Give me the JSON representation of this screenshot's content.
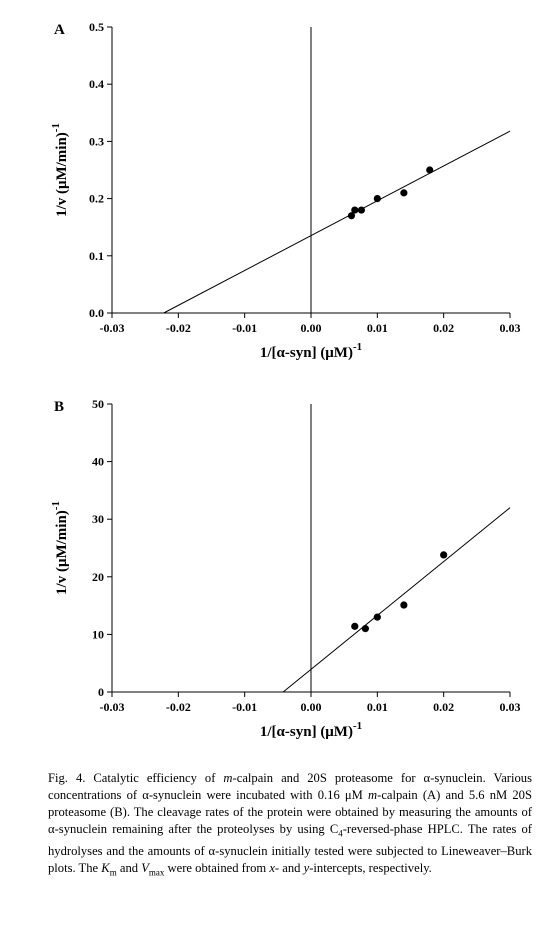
{
  "chart_data": [
    {
      "type": "scatter",
      "panel_label": "A",
      "xlabel_prefix": "1/[α-syn] (μM)",
      "xlabel_exp": "-1",
      "ylabel_prefix": "1/v (μM/min)",
      "ylabel_exp": "-1",
      "xlim": [
        -0.03,
        0.03
      ],
      "ylim": [
        0,
        0.5
      ],
      "x_ticks": [
        -0.03,
        -0.02,
        -0.01,
        0.0,
        0.01,
        0.02,
        0.03
      ],
      "x_tick_labels": [
        "-0.03",
        "-0.02",
        "-0.01",
        "0.00",
        "0.01",
        "0.02",
        "0.03"
      ],
      "y_ticks": [
        0,
        0.1,
        0.2,
        0.3,
        0.4,
        0.5
      ],
      "y_tick_labels": [
        "0.0",
        "0.1",
        "0.2",
        "0.3",
        "0.4",
        "0.5"
      ],
      "points": [
        {
          "x": 0.0061,
          "y": 0.17
        },
        {
          "x": 0.0066,
          "y": 0.18
        },
        {
          "x": 0.0076,
          "y": 0.18
        },
        {
          "x": 0.01,
          "y": 0.2
        },
        {
          "x": 0.014,
          "y": 0.21
        },
        {
          "x": 0.0179,
          "y": 0.25
        }
      ],
      "fit_line": {
        "x": [
          -0.0222,
          0.03
        ],
        "y": [
          0.0,
          0.318
        ]
      }
    },
    {
      "type": "scatter",
      "panel_label": "B",
      "xlabel_prefix": "1/[α-syn] (μM)",
      "xlabel_exp": "-1",
      "ylabel_prefix": "1/v (μM/min)",
      "ylabel_exp": "-1",
      "xlim": [
        -0.03,
        0.03
      ],
      "ylim": [
        0,
        50
      ],
      "x_ticks": [
        -0.03,
        -0.02,
        -0.01,
        0.0,
        0.01,
        0.02,
        0.03
      ],
      "x_tick_labels": [
        "-0.03",
        "-0.02",
        "-0.01",
        "0.00",
        "0.01",
        "0.02",
        "0.03"
      ],
      "y_ticks": [
        0,
        10,
        20,
        30,
        40,
        50
      ],
      "y_tick_labels": [
        "0",
        "10",
        "20",
        "30",
        "40",
        "50"
      ],
      "points": [
        {
          "x": 0.0066,
          "y": 11.4
        },
        {
          "x": 0.0082,
          "y": 11.0
        },
        {
          "x": 0.01,
          "y": 13.0
        },
        {
          "x": 0.014,
          "y": 15.1
        },
        {
          "x": 0.02,
          "y": 23.8
        }
      ],
      "fit_line": {
        "x": [
          -0.0042,
          0.03
        ],
        "y": [
          0.0,
          32.0
        ]
      }
    }
  ],
  "caption": {
    "fig": "Fig. 4.",
    "t1": " Catalytic efficiency of ",
    "m1": "m",
    "t2": "-calpain and 20S proteasome for α-synuclein. Various concentrations of α-synuclein were incubated with 0.16 μM ",
    "m2": "m",
    "t3": "-calpain (A) and 5.6 nM 20S proteasome (B). The cleavage rates of the protein were obtained by measuring the amounts of α-synuclein remaining after the proteolyses by using C",
    "sub4": "4",
    "t4": "-reversed-phase HPLC. The rates of hydrolyses and the amounts of α-synuclein initially tested were subjected to Lineweaver–Burk plots. The ",
    "km_k": "K",
    "km_sub": "m",
    "t5": " and ",
    "vmax_v": "V",
    "vmax_sub": "max",
    "t6": " were obtained from ",
    "x_i": "x",
    "t7": "- and ",
    "y_i": "y",
    "t8": "-intercepts, respectively."
  }
}
